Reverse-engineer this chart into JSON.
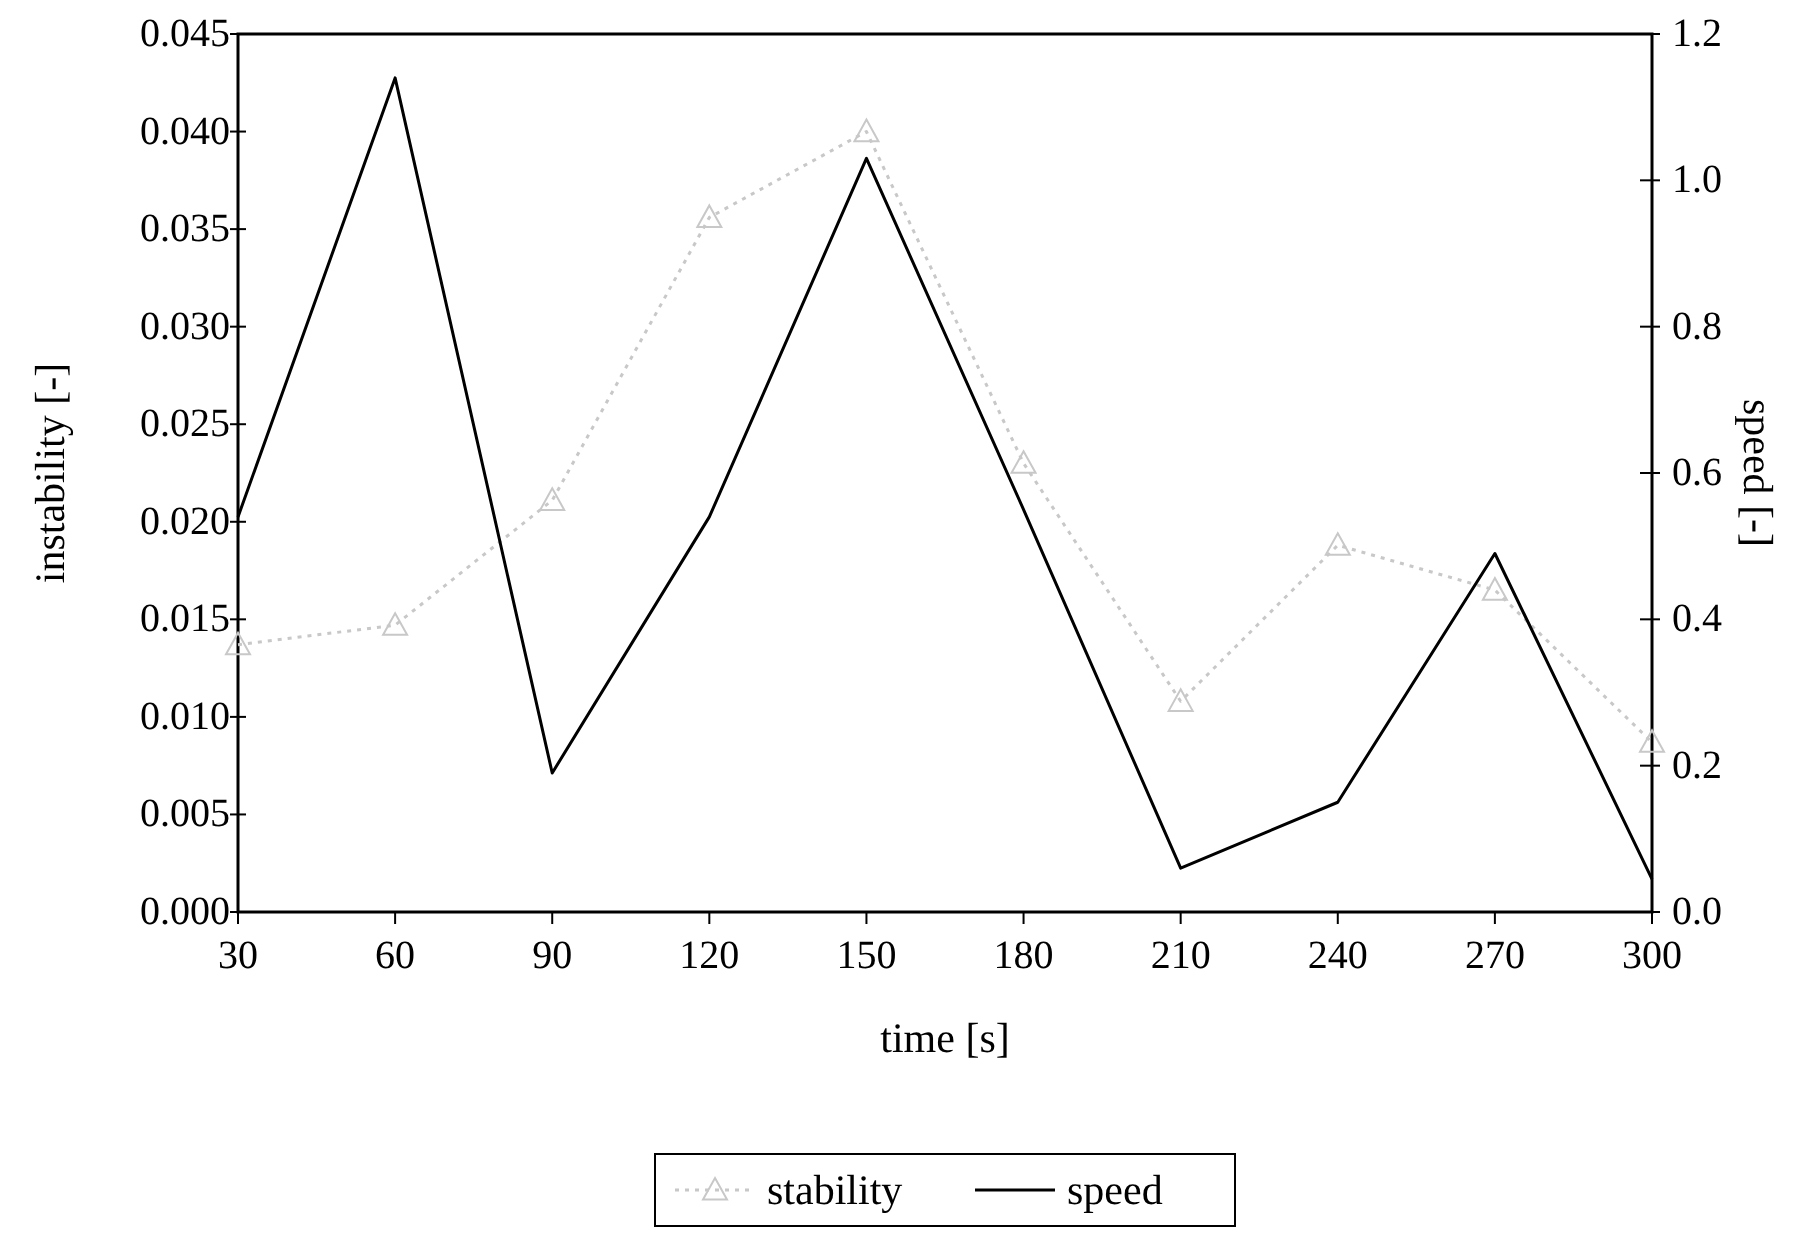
{
  "chart_data": {
    "type": "line",
    "xlabel": "time [s]",
    "ylabel": "instability [-]",
    "y2label": "speed [-]",
    "x": [
      30,
      60,
      90,
      120,
      150,
      180,
      210,
      240,
      270,
      300
    ],
    "xlim": [
      30,
      300
    ],
    "xticks": [
      30,
      60,
      90,
      120,
      150,
      180,
      210,
      240,
      270,
      300
    ],
    "ylim": [
      0,
      0.045
    ],
    "yticks": [
      {
        "value": 0,
        "label": "0.000"
      },
      {
        "value": 0.005,
        "label": "0.005"
      },
      {
        "value": 0.01,
        "label": "0.010"
      },
      {
        "value": 0.015,
        "label": "0.015"
      },
      {
        "value": 0.02,
        "label": "0.020"
      },
      {
        "value": 0.025,
        "label": "0.025"
      },
      {
        "value": 0.03,
        "label": "0.030"
      },
      {
        "value": 0.035,
        "label": "0.035"
      },
      {
        "value": 0.04,
        "label": "0.040"
      },
      {
        "value": 0.045,
        "label": "0.045"
      }
    ],
    "y2lim": [
      0,
      1.2
    ],
    "y2ticks": [
      {
        "value": 0,
        "label": "0.0"
      },
      {
        "value": 0.2,
        "label": "0.2"
      },
      {
        "value": 0.4,
        "label": "0.4"
      },
      {
        "value": 0.6,
        "label": "0.6"
      },
      {
        "value": 0.8,
        "label": "0.8"
      },
      {
        "value": 1,
        "label": "1.0"
      },
      {
        "value": 1.2,
        "label": "1.2"
      }
    ],
    "legend": "bottom",
    "grid": false,
    "series": [
      {
        "name": "stability",
        "color": "#c8c8c8",
        "marker": "triangle",
        "line_style": "dotted",
        "values": [
          0.0137,
          0.0147,
          0.0211,
          0.0356,
          0.04,
          0.023,
          0.0108,
          0.0188,
          0.0165,
          0.0087
        ]
      },
      {
        "name": "speed",
        "color": "#000000",
        "axis": "y2",
        "marker": "none",
        "line_style": "solid",
        "values": [
          0.54,
          1.14,
          0.19,
          0.54,
          1.03,
          0.55,
          0.06,
          0.15,
          0.49,
          0.045
        ]
      }
    ]
  }
}
